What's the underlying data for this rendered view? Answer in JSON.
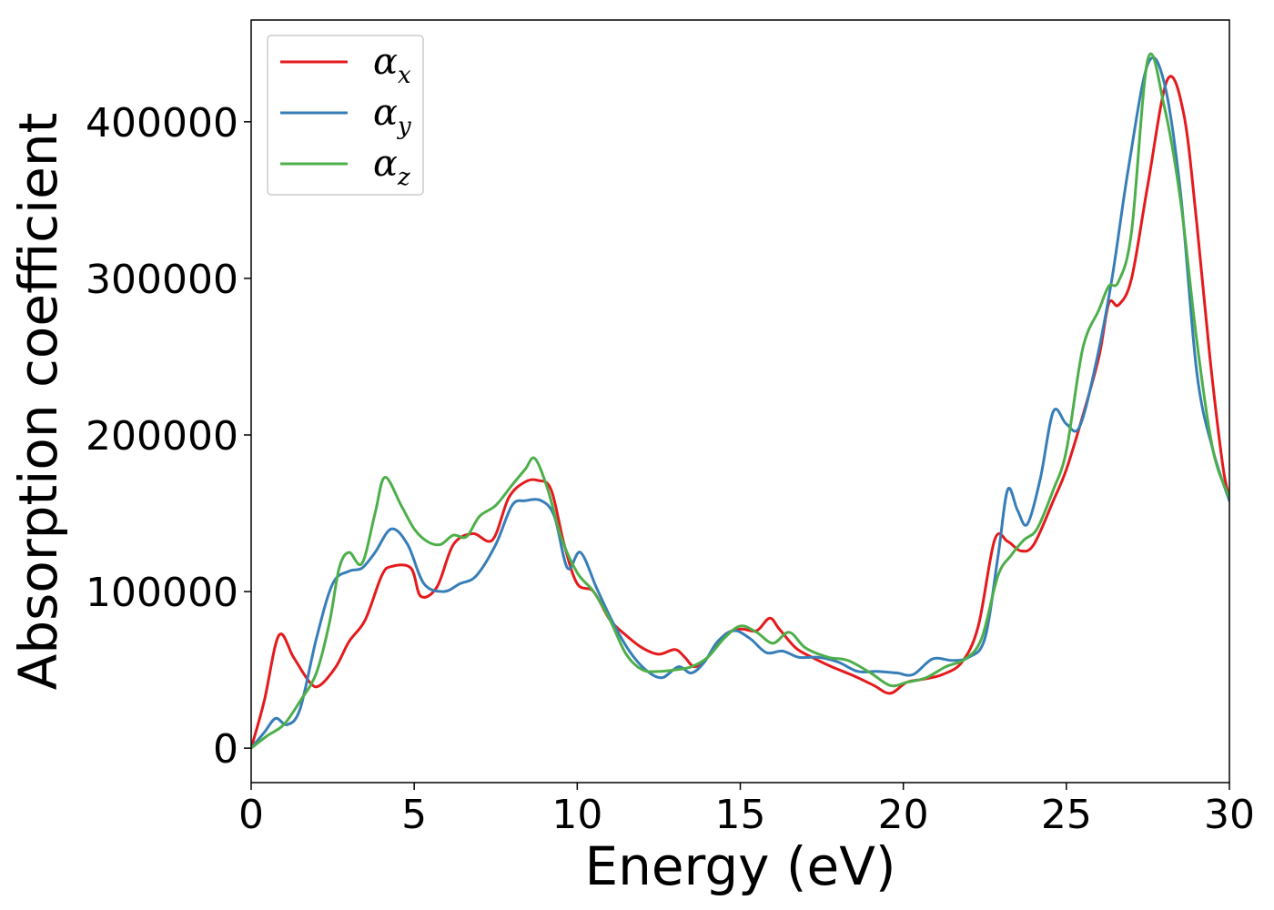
{
  "chart_data": {
    "type": "line",
    "xlabel": "Energy (eV)",
    "ylabel": "Absorption coefficient",
    "xlim": [
      0,
      30
    ],
    "ylim": [
      -22000,
      465000
    ],
    "x_ticks": [
      0,
      5,
      10,
      15,
      20,
      25,
      30
    ],
    "y_ticks": [
      0,
      100000,
      200000,
      300000,
      400000
    ],
    "grid": false,
    "legend_position": "upper-left",
    "series": [
      {
        "name": "α_x",
        "symbol": "α",
        "subscript": "x",
        "color": "#e41a1c",
        "x": [
          0,
          0.4,
          0.85,
          1.3,
          1.8,
          2.1,
          2.6,
          3.0,
          3.5,
          4.0,
          4.3,
          4.9,
          5.2,
          5.7,
          6.2,
          6.8,
          7.4,
          7.9,
          8.4,
          8.8,
          9.2,
          9.6,
          10.0,
          10.5,
          11.0,
          11.5,
          12.0,
          12.5,
          13.0,
          13.3,
          13.6,
          14.0,
          14.5,
          15.0,
          15.5,
          15.9,
          16.2,
          16.7,
          17.2,
          17.8,
          18.5,
          19.1,
          19.6,
          20.1,
          20.6,
          21.2,
          21.8,
          22.3,
          22.8,
          23.2,
          23.6,
          24.0,
          24.6,
          25.0,
          25.5,
          26.0,
          26.3,
          26.6,
          27.0,
          27.5,
          28.1,
          28.6,
          29.0,
          29.4,
          29.8,
          30.0
        ],
        "values": [
          0,
          30000,
          72000,
          58000,
          42000,
          40000,
          52000,
          68000,
          82000,
          110000,
          116000,
          115000,
          97000,
          103000,
          130000,
          137000,
          133000,
          160000,
          170000,
          171000,
          165000,
          130000,
          105000,
          100000,
          82000,
          72000,
          64000,
          60000,
          63000,
          58000,
          52000,
          58000,
          72000,
          76000,
          75000,
          83000,
          76000,
          64000,
          58000,
          52000,
          46000,
          40000,
          35000,
          42000,
          44000,
          47000,
          55000,
          78000,
          133000,
          132000,
          126000,
          130000,
          158000,
          178000,
          212000,
          250000,
          284000,
          283000,
          300000,
          360000,
          427000,
          405000,
          335000,
          250000,
          180000,
          160000
        ]
      },
      {
        "name": "α_y",
        "symbol": "α",
        "subscript": "y",
        "color": "#377eb8",
        "x": [
          0,
          0.4,
          0.75,
          1.1,
          1.5,
          2.0,
          2.5,
          3.0,
          3.4,
          3.8,
          4.3,
          4.8,
          5.3,
          5.9,
          6.4,
          6.9,
          7.5,
          8.0,
          8.4,
          8.9,
          9.3,
          9.7,
          10.1,
          10.6,
          11.1,
          11.6,
          12.1,
          12.6,
          13.1,
          13.5,
          13.9,
          14.3,
          14.8,
          15.3,
          15.8,
          16.3,
          16.8,
          17.4,
          18.0,
          18.6,
          19.2,
          19.8,
          20.3,
          20.9,
          21.5,
          22.0,
          22.5,
          22.9,
          23.2,
          23.5,
          23.8,
          24.2,
          24.6,
          25.0,
          25.4,
          25.9,
          26.4,
          26.9,
          27.5,
          28.0,
          28.5,
          29.0,
          29.5,
          30.0
        ],
        "values": [
          0,
          10000,
          19000,
          15000,
          25000,
          70000,
          105000,
          113000,
          115000,
          125000,
          140000,
          130000,
          105000,
          100000,
          105000,
          110000,
          130000,
          155000,
          158000,
          158000,
          148000,
          115000,
          125000,
          102000,
          80000,
          62000,
          50000,
          45000,
          52000,
          48000,
          55000,
          68000,
          75000,
          70000,
          61000,
          62000,
          58000,
          58000,
          55000,
          49000,
          49000,
          48000,
          47000,
          57000,
          56000,
          58000,
          70000,
          122000,
          165000,
          152000,
          143000,
          172000,
          215000,
          207000,
          205000,
          245000,
          300000,
          370000,
          437000,
          425000,
          355000,
          240000,
          190000,
          158000
        ]
      },
      {
        "name": "α_z",
        "symbol": "α",
        "subscript": "z",
        "color": "#4daf4a",
        "x": [
          0,
          0.5,
          1.0,
          1.5,
          2.0,
          2.4,
          2.7,
          3.0,
          3.4,
          3.8,
          4.1,
          4.6,
          5.0,
          5.4,
          5.8,
          6.2,
          6.6,
          7.0,
          7.5,
          8.0,
          8.4,
          8.7,
          9.1,
          9.5,
          10.0,
          10.5,
          11.0,
          11.5,
          12.0,
          12.5,
          13.0,
          13.5,
          14.0,
          14.5,
          15.0,
          15.5,
          16.0,
          16.5,
          17.0,
          17.7,
          18.3,
          19.0,
          19.6,
          20.1,
          20.7,
          21.3,
          21.9,
          22.4,
          22.9,
          23.3,
          23.7,
          24.1,
          24.6,
          25.0,
          25.5,
          26.0,
          26.3,
          26.6,
          27.0,
          27.5,
          28.0,
          28.5,
          29.0,
          29.5,
          30.0
        ],
        "values": [
          0,
          8000,
          15000,
          30000,
          48000,
          80000,
          115000,
          125000,
          118000,
          150000,
          173000,
          155000,
          140000,
          132000,
          130000,
          136000,
          135000,
          148000,
          155000,
          168000,
          178000,
          185000,
          165000,
          135000,
          112000,
          100000,
          82000,
          60000,
          50000,
          49000,
          50000,
          52000,
          58000,
          70000,
          78000,
          74000,
          67000,
          74000,
          64000,
          58000,
          56000,
          48000,
          40000,
          42000,
          45000,
          52000,
          57000,
          70000,
          110000,
          123000,
          133000,
          140000,
          165000,
          190000,
          255000,
          280000,
          295000,
          298000,
          330000,
          440000,
          410000,
          350000,
          260000,
          190000,
          160000
        ]
      }
    ]
  }
}
